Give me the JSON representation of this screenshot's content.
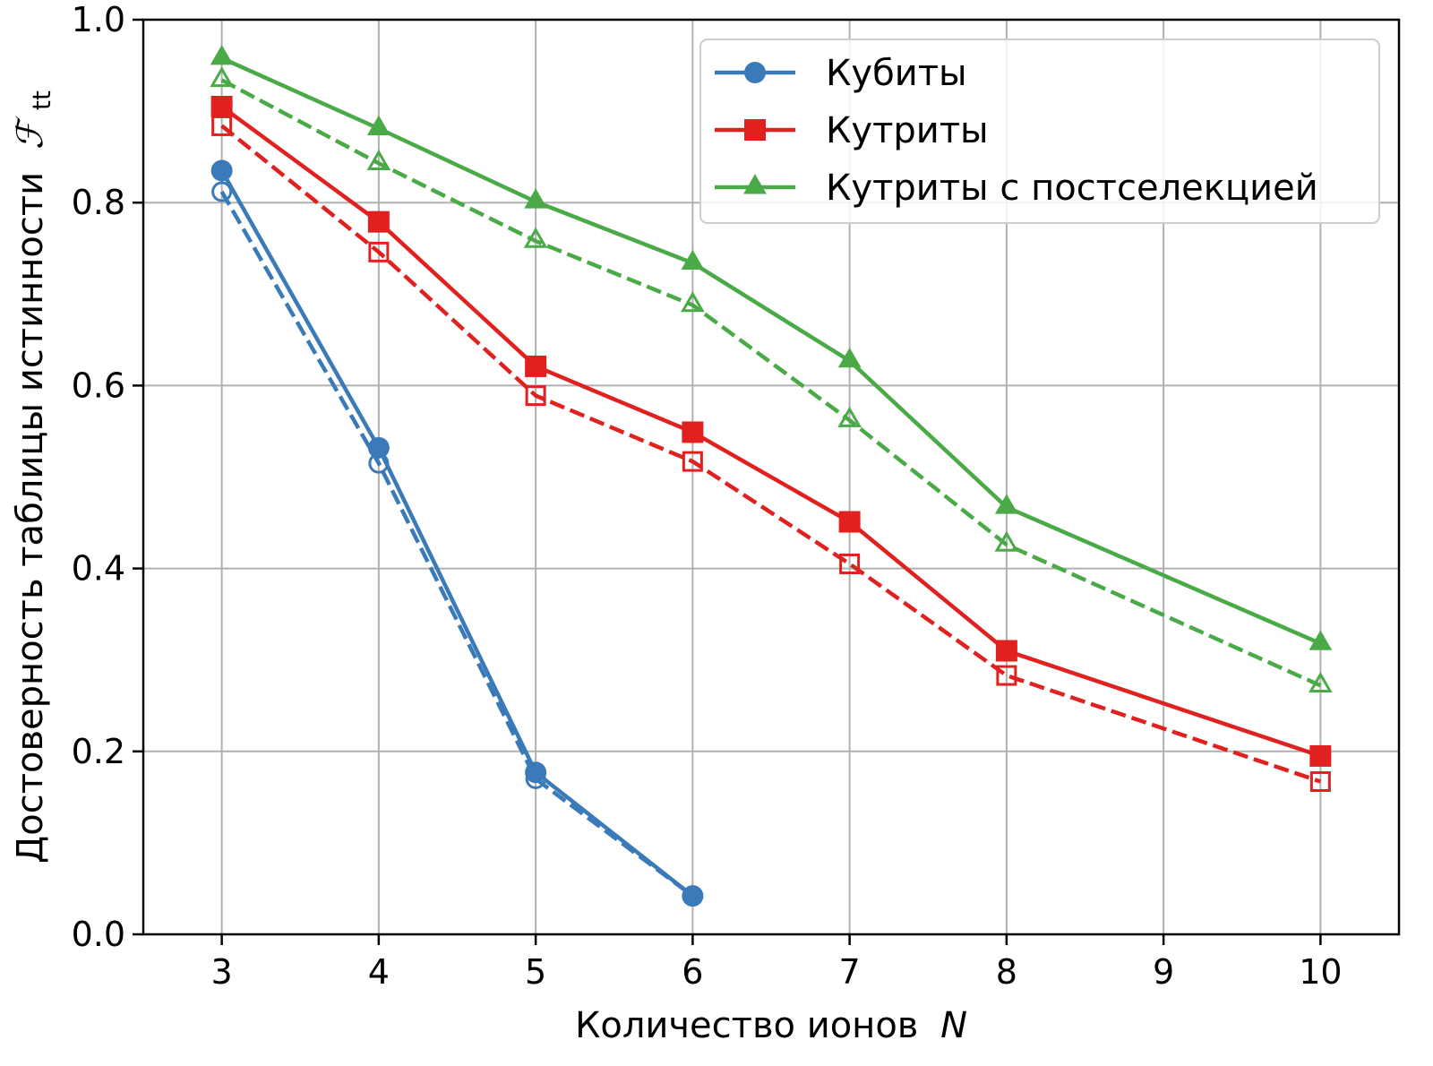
{
  "chart_data": {
    "type": "line",
    "xlabel": "Количество ионов",
    "xlabel_var": "N",
    "ylabel": "Достоверность таблицы истинности",
    "ylabel_symbol": "ℱ",
    "ylabel_subscript": "tt",
    "xlim": [
      2.5,
      10.5
    ],
    "ylim": [
      0.0,
      1.0
    ],
    "xticks": [
      3,
      4,
      5,
      6,
      7,
      8,
      9,
      10
    ],
    "yticks": [
      "0.0",
      "0.2",
      "0.4",
      "0.6",
      "0.8",
      "1.0"
    ],
    "grid": true,
    "legend_position": "top-right",
    "series": [
      {
        "name": "Кубиты",
        "color": "#3a7ab8",
        "marker": "circle",
        "line": "solid",
        "x": [
          3,
          4,
          5,
          6
        ],
        "y": [
          0.835,
          0.532,
          0.177,
          0.042
        ]
      },
      {
        "name": "",
        "color": "#3a7ab8",
        "marker": "circle-open",
        "line": "dashed",
        "x": [
          3,
          4,
          5,
          6
        ],
        "y": [
          0.812,
          0.515,
          0.17,
          0.042
        ]
      },
      {
        "name": "Кутриты",
        "color": "#e0211f",
        "marker": "square",
        "line": "solid",
        "x": [
          3,
          4,
          5,
          6,
          7,
          8,
          10
        ],
        "y": [
          0.905,
          0.779,
          0.621,
          0.549,
          0.451,
          0.31,
          0.195
        ]
      },
      {
        "name": "",
        "color": "#e0211f",
        "marker": "square-open",
        "line": "dashed",
        "x": [
          3,
          4,
          5,
          6,
          7,
          8,
          10
        ],
        "y": [
          0.884,
          0.746,
          0.589,
          0.517,
          0.405,
          0.283,
          0.167
        ]
      },
      {
        "name": "Кутриты с постселекцией",
        "color": "#4aaa48",
        "marker": "triangle",
        "line": "solid",
        "x": [
          3,
          4,
          5,
          6,
          7,
          8,
          10
        ],
        "y": [
          0.958,
          0.881,
          0.801,
          0.734,
          0.627,
          0.467,
          0.318
        ]
      },
      {
        "name": "",
        "color": "#4aaa48",
        "marker": "triangle-open",
        "line": "dashed",
        "x": [
          3,
          4,
          5,
          6,
          7,
          8,
          10
        ],
        "y": [
          0.934,
          0.843,
          0.758,
          0.688,
          0.562,
          0.426,
          0.272
        ]
      }
    ]
  }
}
